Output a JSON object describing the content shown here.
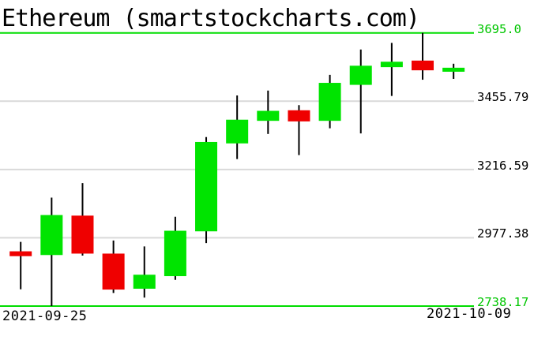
{
  "title": "Ethereum (smartstockcharts.com)",
  "colors": {
    "up_candle": "#00e400",
    "down_candle": "#ef0000",
    "wick": "#000000",
    "grid_line": "#d9d9d9",
    "extreme_line": "#00dd00",
    "extreme_text": "#00c600",
    "text": "#000000",
    "background": "#ffffff"
  },
  "x_axis": {
    "left_label": "2021-09-25",
    "right_label": "2021-10-09"
  },
  "chart_data": {
    "type": "candlestick",
    "title": "Ethereum (smartstockcharts.com)",
    "grid": true,
    "ylim": [
      2738.17,
      3695.0
    ],
    "y_axis": {
      "ticks": [
        3695.0,
        3455.79,
        3216.59,
        2977.38,
        2738.17
      ],
      "tick_labels": [
        "3695.0",
        "3455.79",
        "3216.59",
        "2977.38",
        "2738.17"
      ],
      "extreme_ticks_green": true,
      "position": "right"
    },
    "x_axis_labels": [
      "2021-09-25",
      "2021-10-09"
    ],
    "candles": [
      {
        "open": 2930,
        "high": 2963,
        "low": 2797,
        "close": 2913
      },
      {
        "open": 2917,
        "high": 3118,
        "low": 2738.17,
        "close": 3057
      },
      {
        "open": 3055,
        "high": 3169,
        "low": 2915,
        "close": 2922
      },
      {
        "open": 2922,
        "high": 2968,
        "low": 2784,
        "close": 2796
      },
      {
        "open": 2799,
        "high": 2947,
        "low": 2768,
        "close": 2848
      },
      {
        "open": 2843,
        "high": 3051,
        "low": 2830,
        "close": 3002
      },
      {
        "open": 3000,
        "high": 3330,
        "low": 2959,
        "close": 3313
      },
      {
        "open": 3308,
        "high": 3476,
        "low": 3253,
        "close": 3391
      },
      {
        "open": 3387,
        "high": 3493,
        "low": 3341,
        "close": 3422
      },
      {
        "open": 3424,
        "high": 3442,
        "low": 3267,
        "close": 3385
      },
      {
        "open": 3387,
        "high": 3548,
        "low": 3361,
        "close": 3520
      },
      {
        "open": 3513,
        "high": 3637,
        "low": 3343,
        "close": 3580
      },
      {
        "open": 3575,
        "high": 3660,
        "low": 3474,
        "close": 3594
      },
      {
        "open": 3598,
        "high": 3695.0,
        "low": 3531,
        "close": 3564
      },
      {
        "open": 3559,
        "high": 3587,
        "low": 3534,
        "close": 3573
      }
    ]
  }
}
